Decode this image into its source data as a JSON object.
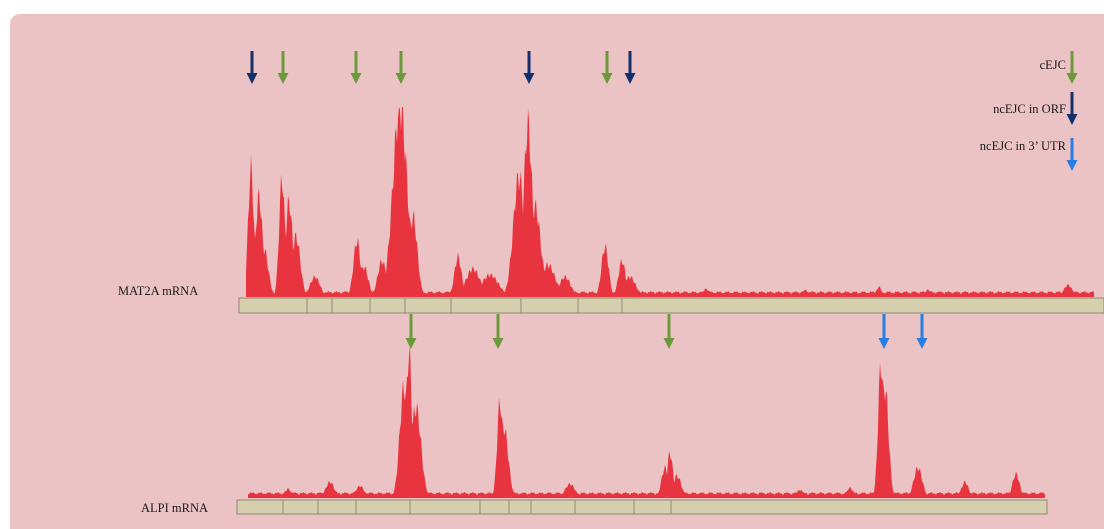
{
  "tracks": [
    {
      "label": "MAT2A mRNA",
      "arrows": [
        {
          "type": "ncEJC in ORF"
        },
        {
          "type": "cEJC"
        },
        {
          "type": "cEJC"
        },
        {
          "type": "cEJC"
        },
        {
          "type": "ncEJC in ORF"
        },
        {
          "type": "cEJC"
        },
        {
          "type": "ncEJC in ORF"
        }
      ]
    },
    {
      "label": "ALPI mRNA",
      "arrows": [
        {
          "type": "cEJC"
        },
        {
          "type": "cEJC"
        },
        {
          "type": "cEJC"
        },
        {
          "type": "ncEJC in 3' UTR"
        },
        {
          "type": "ncEJC in 3' UTR"
        }
      ]
    }
  ],
  "legend": [
    {
      "label": "cEJC",
      "color": "#6a9a3a"
    },
    {
      "label": "ncEJC in ORF",
      "color": "#14306b"
    },
    {
      "label": "ncEJC in 3’ UTR",
      "color": "#2a7de1"
    }
  ],
  "colors": {
    "background": "#ecc3c4",
    "signal": "#e8343f",
    "exon_bar": "#d6cfae"
  }
}
